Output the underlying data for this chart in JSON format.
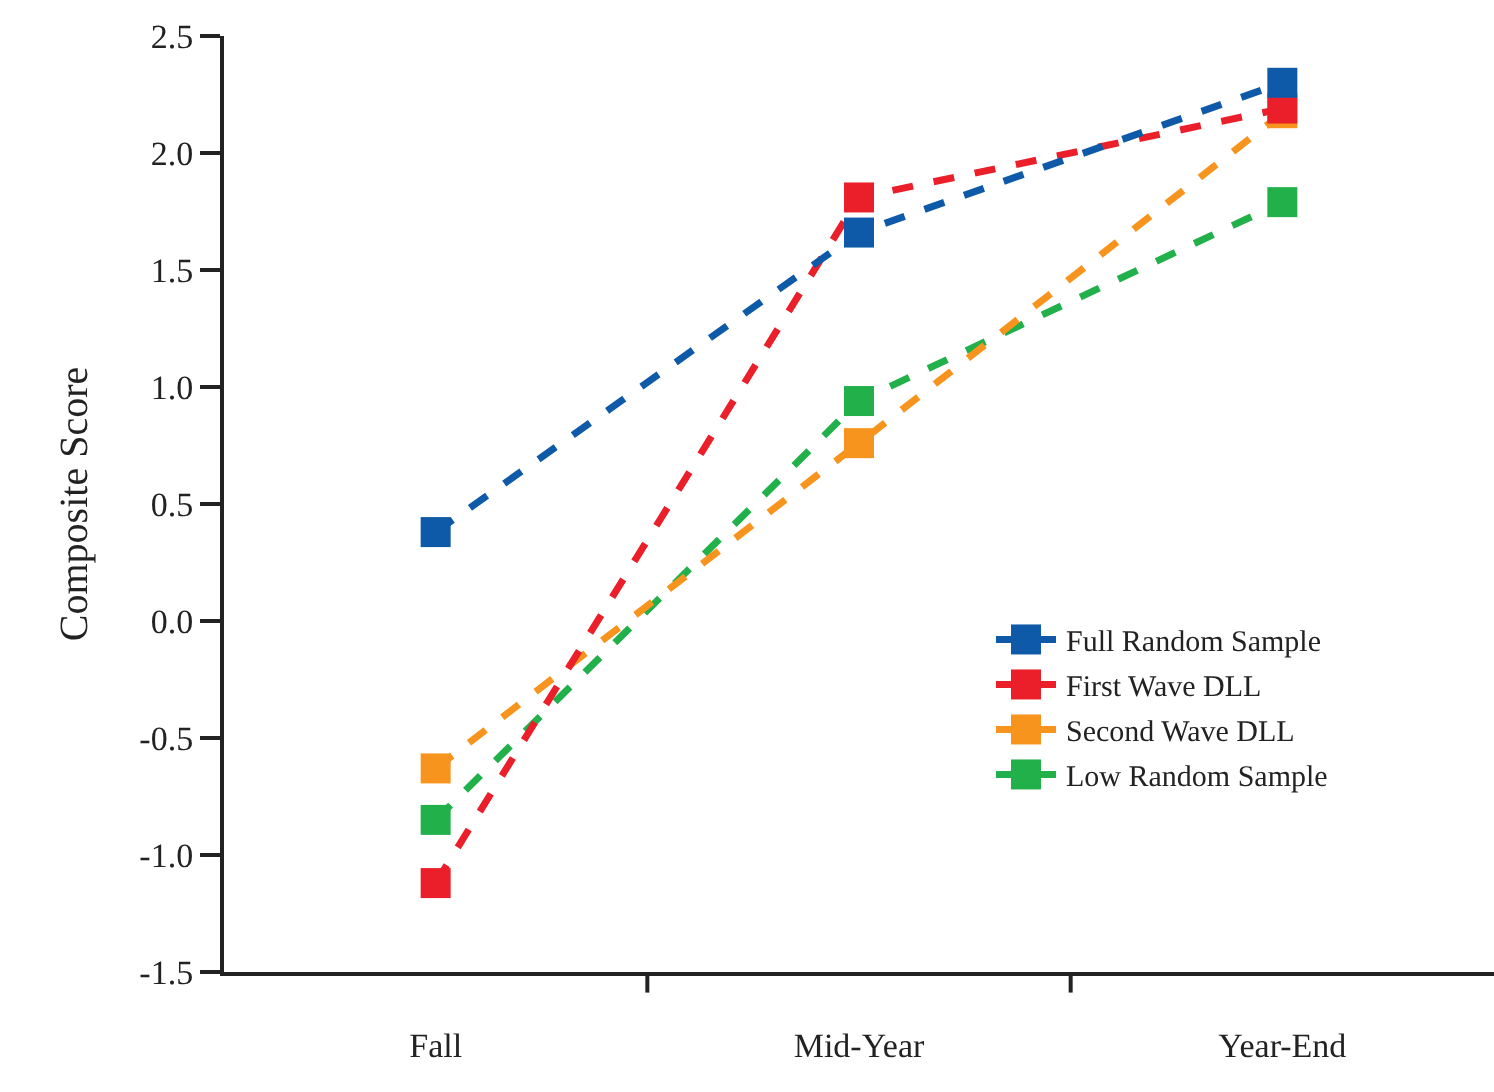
{
  "chart_data": {
    "type": "line",
    "ylabel": "Composite Score",
    "categories": [
      "Fall",
      "Mid-Year",
      "Year-End"
    ],
    "series": [
      {
        "name": "Full Random Sample",
        "color": "#0f5aa8",
        "values": [
          0.38,
          1.66,
          2.3
        ]
      },
      {
        "name": "First Wave DLL",
        "color": "#ea1f2a",
        "values": [
          -1.12,
          1.81,
          2.19
        ]
      },
      {
        "name": "Second Wave DLL",
        "color": "#f7941d",
        "values": [
          -0.63,
          0.76,
          2.17
        ]
      },
      {
        "name": "Low Random Sample",
        "color": "#22b04b",
        "values": [
          -0.85,
          0.94,
          1.79
        ]
      }
    ],
    "ylim": [
      -1.5,
      2.5
    ],
    "yticks": [
      {
        "value": -1.5,
        "label": "-1.5"
      },
      {
        "value": -1,
        "label": "-1.0"
      },
      {
        "value": -0.5,
        "label": "-0.5"
      },
      {
        "value": 0,
        "label": "0.0"
      },
      {
        "value": 0.5,
        "label": "0.5"
      },
      {
        "value": 1,
        "label": "1.0"
      },
      {
        "value": 1.5,
        "label": "1.5"
      },
      {
        "value": 2,
        "label": "2.0"
      },
      {
        "value": 2.5,
        "label": "2.5"
      }
    ],
    "legend": "bottom right",
    "marker": "square",
    "line_style": "dashed"
  }
}
